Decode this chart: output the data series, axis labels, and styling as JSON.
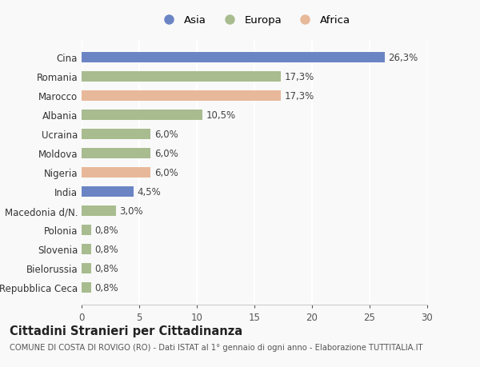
{
  "categories": [
    "Repubblica Ceca",
    "Bielorussia",
    "Slovenia",
    "Polonia",
    "Macedonia d/N.",
    "India",
    "Nigeria",
    "Moldova",
    "Ucraina",
    "Albania",
    "Marocco",
    "Romania",
    "Cina"
  ],
  "values": [
    0.8,
    0.8,
    0.8,
    0.8,
    3.0,
    4.5,
    6.0,
    6.0,
    6.0,
    10.5,
    17.3,
    17.3,
    26.3
  ],
  "labels": [
    "0,8%",
    "0,8%",
    "0,8%",
    "0,8%",
    "3,0%",
    "4,5%",
    "6,0%",
    "6,0%",
    "6,0%",
    "10,5%",
    "17,3%",
    "17,3%",
    "26,3%"
  ],
  "colors": [
    "#a8bc8f",
    "#a8bc8f",
    "#a8bc8f",
    "#a8bc8f",
    "#a8bc8f",
    "#6b85c4",
    "#e8b89a",
    "#a8bc8f",
    "#a8bc8f",
    "#a8bc8f",
    "#e8b89a",
    "#a8bc8f",
    "#6b85c4"
  ],
  "legend_labels": [
    "Asia",
    "Europa",
    "Africa"
  ],
  "legend_colors": [
    "#6b85c4",
    "#a8bc8f",
    "#e8b89a"
  ],
  "title": "Cittadini Stranieri per Cittadinanza",
  "subtitle": "COMUNE DI COSTA DI ROVIGO (RO) - Dati ISTAT al 1° gennaio di ogni anno - Elaborazione TUTTITALIA.IT",
  "xlim": [
    0,
    30
  ],
  "xticks": [
    0,
    5,
    10,
    15,
    20,
    25,
    30
  ],
  "background_color": "#f9f9f9",
  "bar_height": 0.55,
  "label_fontsize": 8.5,
  "title_fontsize": 10.5,
  "subtitle_fontsize": 7.2,
  "tick_fontsize": 8.5
}
